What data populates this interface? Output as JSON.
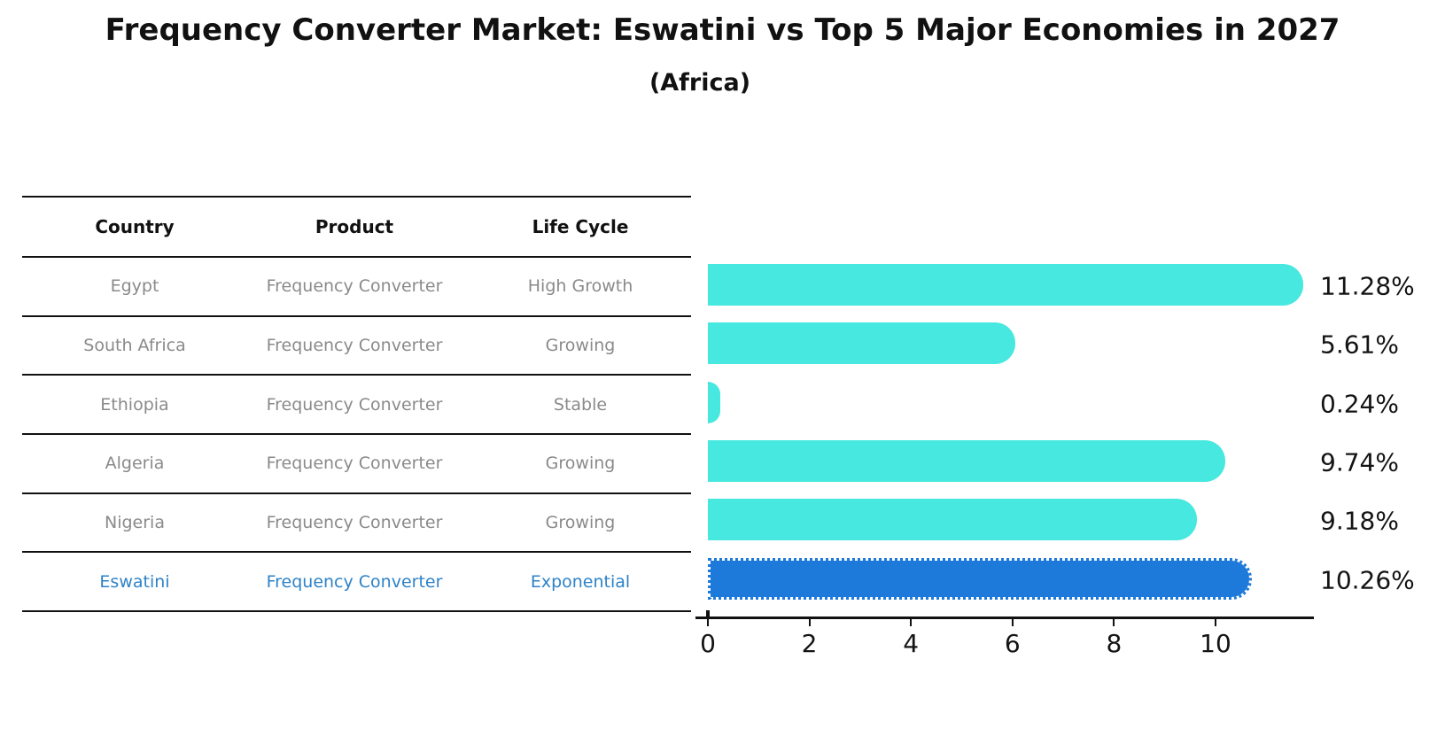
{
  "title": "Frequency Converter Market: Eswatini vs Top 5 Major Economies in 2027",
  "subtitle": "(Africa)",
  "table": {
    "headers": [
      "Country",
      "Product",
      "Life Cycle"
    ],
    "rows": [
      {
        "country": "Egypt",
        "product": "Frequency Converter",
        "life_cycle": "High Growth",
        "highlight": false
      },
      {
        "country": "South Africa",
        "product": "Frequency Converter",
        "life_cycle": "Growing",
        "highlight": false
      },
      {
        "country": "Ethiopia",
        "product": "Frequency Converter",
        "life_cycle": "Stable",
        "highlight": false
      },
      {
        "country": "Algeria",
        "product": "Frequency Converter",
        "life_cycle": "Growing",
        "highlight": false
      },
      {
        "country": "Nigeria",
        "product": "Frequency Converter",
        "life_cycle": "Growing",
        "highlight": true
      }
    ]
  },
  "chart_data": {
    "type": "bar",
    "orientation": "horizontal",
    "title": "Frequency Converter Market: Eswatini vs Top 5 Major Economies in 2027 (Africa)",
    "categories": [
      "Egypt",
      "South Africa",
      "Ethiopia",
      "Algeria",
      "Nigeria",
      "Eswatini"
    ],
    "values": [
      11.28,
      5.61,
      0.24,
      9.74,
      9.18,
      10.26
    ],
    "value_labels": [
      "11.28%",
      "5.61%",
      "0.24%",
      "9.74%",
      "9.18%",
      "10.26%"
    ],
    "highlight_index": 5,
    "xticks": [
      0,
      2,
      4,
      6,
      8,
      10
    ],
    "xlim": [
      0,
      11.94
    ],
    "xlabel": "",
    "ylabel": "",
    "grid": false,
    "legend": false,
    "bar_color": "#47e8e0",
    "highlight_bar_color": "#1e7ada",
    "highlight_text_color": "#2e82c8",
    "text_color": "#8a8a8a"
  }
}
